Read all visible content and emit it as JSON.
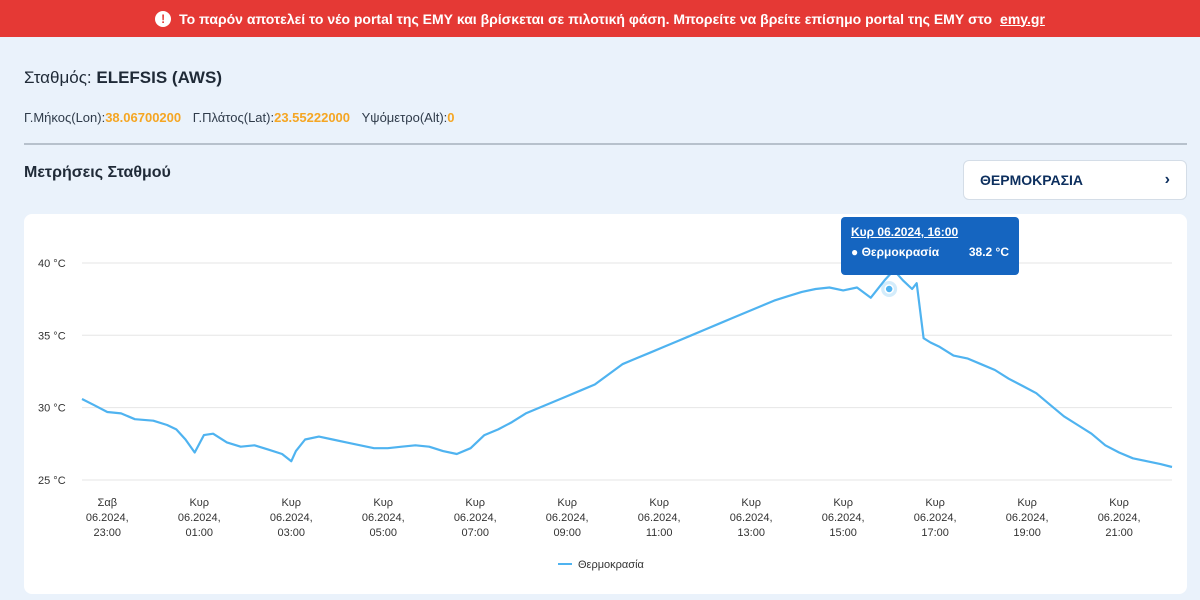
{
  "banner": {
    "icon": "alert-circle-icon",
    "text": "Το παρόν αποτελεί το νέο portal της ΕΜΥ και βρίσκεται σε πιλοτική φάση. Μπορείτε να βρείτε επίσημο portal της ΕΜΥ στο",
    "link_text": "emy.gr"
  },
  "station": {
    "label": "Σταθμός:",
    "name": "ELEFSIS (AWS)",
    "lon_label": "Γ.Μήκος(Lon):",
    "lon": "38.06700200",
    "lat_label": "Γ.Πλάτος(Lat):",
    "lat": "23.55222000",
    "alt_label": "Υψόμετρο(Alt):",
    "alt": "0"
  },
  "section_title": "Μετρήσεις Σταθμού",
  "measure_select": {
    "value": "ΘΕΡΜΟΚΡΑΣΙΑ",
    "icon": "chevron-right-icon"
  },
  "tooltip": {
    "date": "Κυρ 06.2024, 16:00",
    "series": "Θερμοκρασία",
    "value": "38.2 °C"
  },
  "colors": {
    "banner": "#e53935",
    "accent": "#f5a623",
    "line": "#4fb3f0",
    "tooltip": "#1565c0"
  },
  "chart_data": {
    "type": "line",
    "ylim": [
      25,
      42
    ],
    "yticks": [
      25,
      30,
      35,
      40
    ],
    "ytick_labels": [
      "25 °C",
      "30 °C",
      "35 °C",
      "40 °C"
    ],
    "xlim": [
      22.45,
      22.15
    ],
    "x_ticks": [
      {
        "h": 23,
        "lines": [
          "Σαβ",
          "06.2024,",
          "23:00"
        ]
      },
      {
        "h": 25,
        "lines": [
          "Κυρ",
          "06.2024,",
          "01:00"
        ]
      },
      {
        "h": 27,
        "lines": [
          "Κυρ",
          "06.2024,",
          "03:00"
        ]
      },
      {
        "h": 29,
        "lines": [
          "Κυρ",
          "06.2024,",
          "05:00"
        ]
      },
      {
        "h": 31,
        "lines": [
          "Κυρ",
          "06.2024,",
          "07:00"
        ]
      },
      {
        "h": 33,
        "lines": [
          "Κυρ",
          "06.2024,",
          "09:00"
        ]
      },
      {
        "h": 35,
        "lines": [
          "Κυρ",
          "06.2024,",
          "11:00"
        ]
      },
      {
        "h": 37,
        "lines": [
          "Κυρ",
          "06.2024,",
          "13:00"
        ]
      },
      {
        "h": 39,
        "lines": [
          "Κυρ",
          "06.2024,",
          "15:00"
        ]
      },
      {
        "h": 41,
        "lines": [
          "Κυρ",
          "06.2024,",
          "17:00"
        ]
      },
      {
        "h": 43,
        "lines": [
          "Κυρ",
          "06.2024,",
          "19:00"
        ]
      },
      {
        "h": 45,
        "lines": [
          "Κυρ",
          "06.2024,",
          "21:00"
        ]
      }
    ],
    "legend": "Θερμοκρασία",
    "series": [
      {
        "name": "Θερμοκρασία",
        "x": [
          22.45,
          22.7,
          23.0,
          23.3,
          23.6,
          24.0,
          24.3,
          24.5,
          24.7,
          24.9,
          25.1,
          25.3,
          25.6,
          25.9,
          26.2,
          26.5,
          26.8,
          27.0,
          27.1,
          27.3,
          27.6,
          27.9,
          28.2,
          28.5,
          28.8,
          29.1,
          29.4,
          29.7,
          30.0,
          30.3,
          30.6,
          30.9,
          31.2,
          31.5,
          31.8,
          32.1,
          32.4,
          32.7,
          33.0,
          33.3,
          33.6,
          33.9,
          34.2,
          34.5,
          34.8,
          35.1,
          35.4,
          35.7,
          36.0,
          36.3,
          36.6,
          36.9,
          37.2,
          37.5,
          37.8,
          38.1,
          38.4,
          38.7,
          39.0,
          39.3,
          39.6,
          39.9,
          40.1,
          40.3,
          40.5,
          40.6,
          40.75,
          40.9,
          41.1,
          41.4,
          41.7,
          42.0,
          42.3,
          42.6,
          42.9,
          43.2,
          43.5,
          43.8,
          44.1,
          44.4,
          44.7,
          45.0,
          45.3,
          45.6,
          45.9,
          46.15
        ],
        "y": [
          30.6,
          30.2,
          29.7,
          29.6,
          29.2,
          29.1,
          28.8,
          28.5,
          27.8,
          26.9,
          28.1,
          28.2,
          27.6,
          27.3,
          27.4,
          27.1,
          26.8,
          26.3,
          27.0,
          27.8,
          28.0,
          27.8,
          27.6,
          27.4,
          27.2,
          27.2,
          27.3,
          27.4,
          27.3,
          27.0,
          26.8,
          27.2,
          28.1,
          28.5,
          29.0,
          29.6,
          30.0,
          30.4,
          30.8,
          31.2,
          31.6,
          32.3,
          33.0,
          33.4,
          33.8,
          34.2,
          34.6,
          35.0,
          35.4,
          35.8,
          36.2,
          36.6,
          37.0,
          37.4,
          37.7,
          38.0,
          38.2,
          38.3,
          38.1,
          38.3,
          37.6,
          38.8,
          39.5,
          38.8,
          38.2,
          38.6,
          34.8,
          34.5,
          34.2,
          33.6,
          33.4,
          33.0,
          32.6,
          32.0,
          31.5,
          31.0,
          30.2,
          29.4,
          28.8,
          28.2,
          27.4,
          26.9,
          26.5,
          26.3,
          26.1,
          25.9
        ]
      }
    ]
  }
}
